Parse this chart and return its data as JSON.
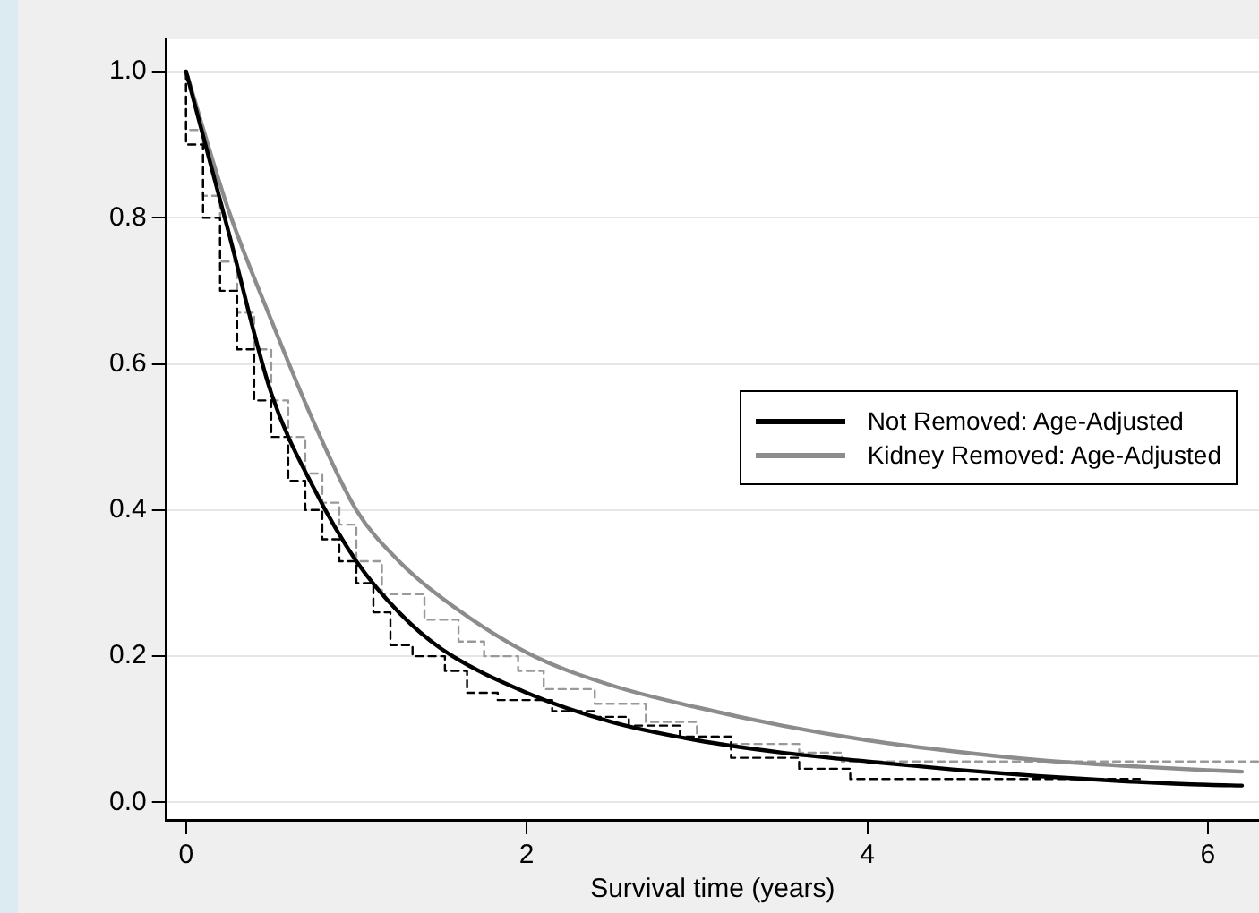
{
  "chart_data": {
    "type": "line",
    "xlabel": "Survival time (years)",
    "xlim": [
      -0.116,
      6.3
    ],
    "xticks": [
      0,
      2,
      4,
      6
    ],
    "ylim": [
      -0.024,
      1.044
    ],
    "yticks": [
      {
        "value": 0,
        "label": "0.0"
      },
      {
        "value": 0.2,
        "label": "0.2"
      },
      {
        "value": 0.4,
        "label": "0.4"
      },
      {
        "value": 0.6,
        "label": "0.6"
      },
      {
        "value": 0.8,
        "label": "0.8"
      },
      {
        "value": 1,
        "label": "1.0"
      }
    ],
    "grid": "y",
    "legend": "right",
    "series": [
      {
        "name": "Not Removed: Age-Adjusted",
        "color": "#000000",
        "line_style": "solid",
        "x": [
          0,
          0.25,
          0.5,
          0.75,
          1,
          1.25,
          1.5,
          2,
          2.5,
          3,
          3.5,
          4,
          4.5,
          5,
          5.5,
          6,
          6.2
        ],
        "values": [
          1,
          0.78,
          0.56,
          0.43,
          0.33,
          0.26,
          0.21,
          0.15,
          0.11,
          0.085,
          0.068,
          0.056,
          0.045,
          0.036,
          0.029,
          0.024,
          0.023
        ]
      },
      {
        "name": "Kidney Removed: Age-Adjusted",
        "color": "#8c8c8c",
        "line_style": "solid",
        "x": [
          0,
          0.25,
          0.5,
          0.75,
          1,
          1.25,
          1.5,
          2,
          2.5,
          3,
          3.5,
          4,
          4.5,
          5,
          5.5,
          6,
          6.2
        ],
        "values": [
          1,
          0.81,
          0.66,
          0.52,
          0.4,
          0.33,
          0.28,
          0.205,
          0.16,
          0.13,
          0.105,
          0.085,
          0.07,
          0.058,
          0.05,
          0.044,
          0.042
        ]
      },
      {
        "type": "step",
        "color": "#000000",
        "line_style": "dashed",
        "x": [
          0,
          0.1,
          0.2,
          0.3,
          0.4,
          0.5,
          0.6,
          0.7,
          0.8,
          0.9,
          1,
          1.1,
          1.2,
          1.33,
          1.52,
          1.65,
          1.83,
          2.15,
          2.4,
          2.6,
          2.9,
          3.2,
          3.6,
          3.9,
          4.7,
          5.6
        ],
        "values": [
          1,
          0.9,
          0.8,
          0.7,
          0.62,
          0.55,
          0.5,
          0.44,
          0.4,
          0.36,
          0.33,
          0.3,
          0.26,
          0.215,
          0.2,
          0.18,
          0.15,
          0.14,
          0.125,
          0.117,
          0.105,
          0.09,
          0.061,
          0.046,
          0.032,
          0.032
        ]
      },
      {
        "type": "step",
        "color": "#999999",
        "line_style": "dashed",
        "x": [
          0,
          0.1,
          0.2,
          0.3,
          0.4,
          0.5,
          0.6,
          0.7,
          0.8,
          0.9,
          1,
          1.15,
          1.4,
          1.6,
          1.75,
          1.95,
          2.1,
          2.4,
          2.7,
          3,
          3.2,
          3.6,
          3.85,
          4.95,
          6.3
        ],
        "values": [
          1,
          0.92,
          0.83,
          0.74,
          0.67,
          0.62,
          0.55,
          0.5,
          0.45,
          0.41,
          0.38,
          0.33,
          0.285,
          0.25,
          0.22,
          0.2,
          0.18,
          0.155,
          0.135,
          0.11,
          0.09,
          0.08,
          0.068,
          0.056,
          0.056
        ]
      }
    ]
  }
}
